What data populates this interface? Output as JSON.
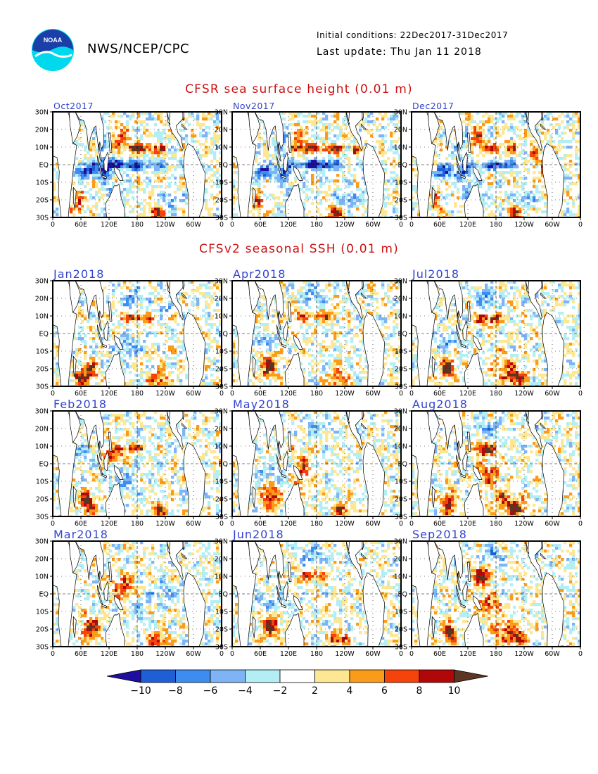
{
  "header": {
    "logo_text": "NOAA",
    "agency": "NWS/NCEP/CPC",
    "initial_conditions": "Initial conditions: 22Dec2017-31Dec2017",
    "last_update": "Last update: Thu Jan 11 2018"
  },
  "sections": {
    "observed_title": "CFSR sea surface height (0.01 m)",
    "forecast_title": "CFSv2 seasonal SSH (0.01 m)"
  },
  "colors": {
    "title": "#cc1111",
    "panel_title": "#3344cc",
    "land": "#ffffff",
    "frame": "#000000"
  },
  "chart_data": {
    "type": "heatmap",
    "variable": "sea surface height anomaly",
    "units": "0.01 m",
    "x_ticks": [
      "0",
      "60E",
      "120E",
      "180",
      "120W",
      "60W",
      "0"
    ],
    "y_ticks": [
      "30N",
      "20N",
      "10N",
      "EQ",
      "10S",
      "20S",
      "30S"
    ],
    "xlim": [
      0,
      360
    ],
    "ylim": [
      -30,
      30
    ],
    "colorbar": {
      "levels": [
        -10,
        -8,
        -6,
        -4,
        -2,
        2,
        4,
        6,
        8,
        10
      ],
      "labels": [
        "−10",
        "−8",
        "−6",
        "−4",
        "−2",
        "2",
        "4",
        "6",
        "8",
        "10"
      ],
      "colors": [
        "#1e0fa0",
        "#1f5fd6",
        "#3d8cf0",
        "#7eb4f5",
        "#b4eef5",
        "#ffffff",
        "#fde792",
        "#fb9b1a",
        "#f6420b",
        "#b00808",
        "#a60000",
        "#5c3523"
      ]
    },
    "panels": [
      {
        "title": "Oct2017",
        "group": "observed"
      },
      {
        "title": "Nov2017",
        "group": "observed"
      },
      {
        "title": "Dec2017",
        "group": "observed"
      },
      {
        "title": "Jan2018",
        "group": "forecast"
      },
      {
        "title": "Apr2018",
        "group": "forecast"
      },
      {
        "title": "Jul2018",
        "group": "forecast"
      },
      {
        "title": "Feb2018",
        "group": "forecast"
      },
      {
        "title": "May2018",
        "group": "forecast"
      },
      {
        "title": "Aug2018",
        "group": "forecast"
      },
      {
        "title": "Mar2018",
        "group": "forecast"
      },
      {
        "title": "Jun2018",
        "group": "forecast"
      },
      {
        "title": "Sep2018",
        "group": "forecast"
      }
    ]
  }
}
